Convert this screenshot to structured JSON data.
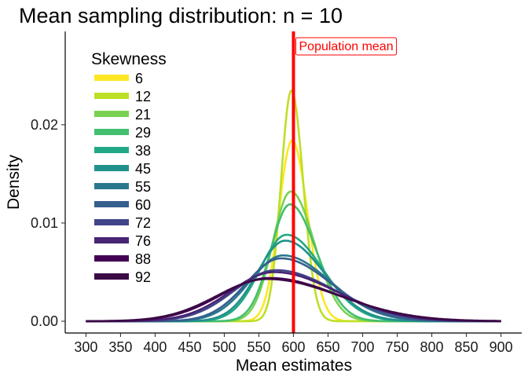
{
  "chart_data": {
    "type": "line",
    "title": "Mean sampling distribution: n = 10",
    "xlabel": "Mean estimates",
    "ylabel": "Density",
    "xlim": [
      270,
      930
    ],
    "ylim": [
      -0.0012,
      0.0295
    ],
    "x_ticks": [
      300,
      350,
      400,
      450,
      500,
      550,
      600,
      650,
      700,
      750,
      800,
      850,
      900
    ],
    "y_ticks": [
      0.0,
      0.01,
      0.02
    ],
    "y_tick_labels": [
      "0.00",
      "0.01",
      "0.02"
    ],
    "grid": false,
    "legend": {
      "title": "Skewness",
      "placement": "top-left"
    },
    "reference_line": {
      "x": 600,
      "label": "Population mean",
      "color": "#ff0000"
    },
    "series": [
      {
        "name": "6",
        "color": "#fde725",
        "mode": 598,
        "peak": 0.0184,
        "sd_left": 19,
        "sd_right": 22
      },
      {
        "name": "12",
        "color": "#bddf26",
        "mode": 597,
        "peak": 0.0235,
        "sd_left": 15,
        "sd_right": 17
      },
      {
        "name": "21",
        "color": "#7ad151",
        "mode": 596,
        "peak": 0.0132,
        "sd_left": 26,
        "sd_right": 34
      },
      {
        "name": "29",
        "color": "#44bf70",
        "mode": 595,
        "peak": 0.0119,
        "sd_left": 28,
        "sd_right": 38
      },
      {
        "name": "38",
        "color": "#22a884",
        "mode": 590,
        "peak": 0.0088,
        "sd_left": 38,
        "sd_right": 52
      },
      {
        "name": "45",
        "color": "#21918c",
        "mode": 588,
        "peak": 0.0082,
        "sd_left": 40,
        "sd_right": 56
      },
      {
        "name": "55",
        "color": "#2a788e",
        "mode": 585,
        "peak": 0.0067,
        "sd_left": 48,
        "sd_right": 68
      },
      {
        "name": "60",
        "color": "#355f8d",
        "mode": 582,
        "peak": 0.0064,
        "sd_left": 50,
        "sd_right": 72
      },
      {
        "name": "72",
        "color": "#414487",
        "mode": 575,
        "peak": 0.0052,
        "sd_left": 60,
        "sd_right": 85
      },
      {
        "name": "76",
        "color": "#482475",
        "mode": 572,
        "peak": 0.005,
        "sd_left": 63,
        "sd_right": 90
      },
      {
        "name": "88",
        "color": "#440154",
        "mode": 565,
        "peak": 0.0044,
        "sd_left": 70,
        "sd_right": 100
      },
      {
        "name": "92",
        "color": "#3b0a45",
        "mode": 562,
        "peak": 0.0043,
        "sd_left": 72,
        "sd_right": 104
      }
    ]
  }
}
